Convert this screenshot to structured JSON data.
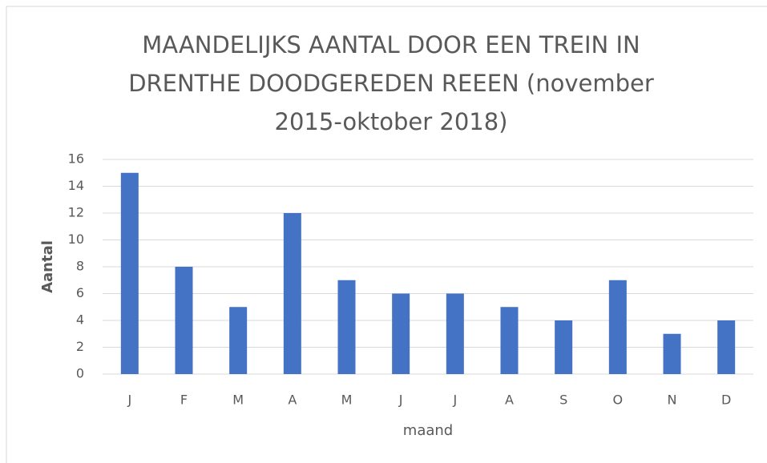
{
  "chart_data": {
    "type": "bar",
    "title": "MAANDELIJKS AANTAL DOOR EEN TREIN IN DRENTHE DOODGEREDEN REEEN (november 2015-oktober 2018)",
    "categories": [
      "J",
      "F",
      "M",
      "A",
      "M",
      "J",
      "J",
      "A",
      "S",
      "O",
      "N",
      "D"
    ],
    "values": [
      15,
      8,
      5,
      12,
      7,
      6,
      6,
      5,
      4,
      7,
      3,
      4
    ],
    "color": "#4472c4",
    "x_label": "maand",
    "y_label": "Aantal",
    "ylim": [
      0,
      16
    ],
    "yticks": [
      0,
      2,
      4,
      6,
      8,
      10,
      12,
      14,
      16
    ],
    "grid": true
  }
}
